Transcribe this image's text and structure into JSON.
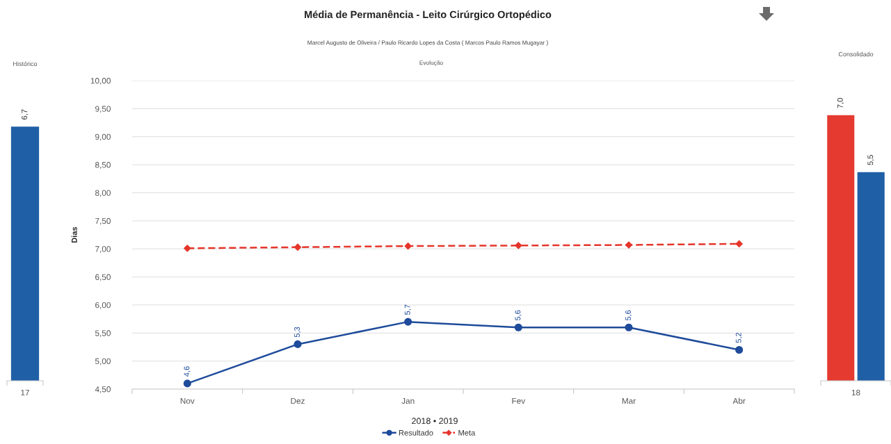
{
  "chart_data": [
    {
      "type": "bar",
      "title": "Histórico",
      "categories": [
        "17"
      ],
      "values": [
        6.7
      ],
      "color": "#1f5fa6",
      "value_labels": [
        "6,7"
      ],
      "tick_labels": "x"
    },
    {
      "type": "line",
      "title": "Média de Permanência - Leito Cirúrgico Ortopédico",
      "subtitle": "Marcel Augusto de Oliveira / Paulo Ricardo Lopes da Costa ( Marcos Paulo Ramos Mugayar )",
      "annotations": [
        "Evolução"
      ],
      "xlabel": "2018 • 2019",
      "ylabel": "Dias",
      "categories": [
        "Nov",
        "Dez",
        "Jan",
        "Fev",
        "Mar",
        "Abr"
      ],
      "series": [
        {
          "name": "Resultado",
          "color": "#1e4b9b",
          "values": [
            4.6,
            5.3,
            5.7,
            5.6,
            5.6,
            5.2
          ],
          "value_labels": [
            "4,6",
            "5,3",
            "5,7",
            "5,6",
            "5,6",
            "5,2"
          ],
          "marker": "circle",
          "line_style": "solid"
        },
        {
          "name": "Meta",
          "color": "#e5352b",
          "values": [
            7.01,
            7.03,
            7.05,
            7.06,
            7.07,
            7.09
          ],
          "marker": "diamond",
          "line_style": "dashed"
        }
      ],
      "ylim": [
        4.5,
        10
      ],
      "yticks": [
        {
          "value": 4.5,
          "label": "4,50"
        },
        {
          "value": 5,
          "label": "5,00"
        },
        {
          "value": 5.5,
          "label": "5,50"
        },
        {
          "value": 6,
          "label": "6,00"
        },
        {
          "value": 6.5,
          "label": "6,50"
        },
        {
          "value": 7,
          "label": "7,00"
        },
        {
          "value": 7.5,
          "label": "7,50"
        },
        {
          "value": 8,
          "label": "8,00"
        },
        {
          "value": 8.5,
          "label": "8,50"
        },
        {
          "value": 9,
          "label": "9,00"
        },
        {
          "value": 9.5,
          "label": "9,50"
        },
        {
          "value": 10,
          "label": "10,00"
        }
      ],
      "grid": "y",
      "legend": "bottom"
    },
    {
      "type": "bar",
      "title": "Consolidado",
      "categories": [
        "18"
      ],
      "series": [
        {
          "color": "#e53a30",
          "values": [
            7.0
          ],
          "value_labels": [
            "7,0"
          ]
        },
        {
          "color": "#1f5fa6",
          "values": [
            5.5
          ],
          "value_labels": [
            "5,5"
          ]
        }
      ],
      "tick_labels": "x"
    }
  ]
}
